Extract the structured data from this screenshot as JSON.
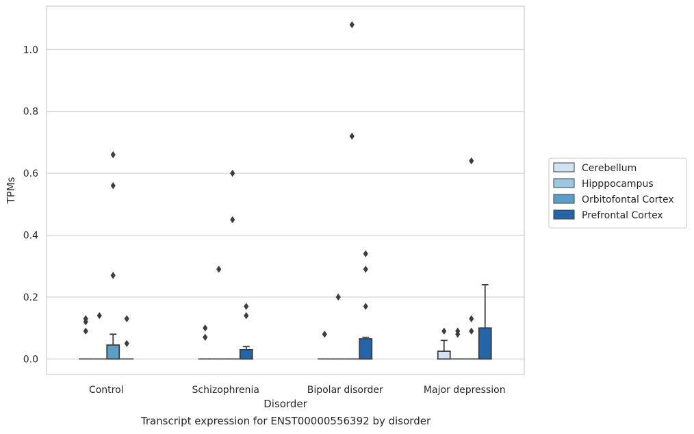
{
  "caption": "Transcript expression for ENST00000556392 by disorder",
  "chart_data": {
    "type": "box",
    "title": "",
    "xlabel": "Disorder",
    "ylabel": "TPMs",
    "ylim": [
      -0.05,
      1.14
    ],
    "yticks": [
      0.0,
      0.2,
      0.4,
      0.6,
      0.8,
      1.0
    ],
    "ytick_labels": [
      "0.0",
      "0.2",
      "0.4",
      "0.6",
      "0.8",
      "1.0"
    ],
    "grid": "horizontal",
    "legend_position": "right",
    "categories": [
      "Control",
      "Schizophrenia",
      "Bipolar disorder",
      "Major depression"
    ],
    "series": [
      {
        "name": "Cerebellum",
        "color": "#d1e2f2",
        "boxes": [
          {
            "q1": 0,
            "median": 0,
            "q3": 0,
            "whisker_low": 0,
            "whisker_high": 0,
            "outliers": [
              0.09,
              0.12,
              0.13
            ]
          },
          {
            "q1": 0,
            "median": 0,
            "q3": 0,
            "whisker_low": 0,
            "whisker_high": 0,
            "outliers": [
              0.07,
              0.1
            ]
          },
          {
            "q1": 0,
            "median": 0,
            "q3": 0,
            "whisker_low": 0,
            "whisker_high": 0,
            "outliers": [
              0.08
            ]
          },
          {
            "q1": 0,
            "median": 0,
            "q3": 0.025,
            "whisker_low": 0,
            "whisker_high": 0.06,
            "outliers": [
              0.09
            ]
          }
        ]
      },
      {
        "name": "Hipppocampus",
        "color": "#9ac8e0",
        "boxes": [
          {
            "q1": 0,
            "median": 0,
            "q3": 0,
            "whisker_low": 0,
            "whisker_high": 0,
            "outliers": [
              0.14
            ]
          },
          {
            "q1": 0,
            "median": 0,
            "q3": 0,
            "whisker_low": 0,
            "whisker_high": 0,
            "outliers": [
              0.29
            ]
          },
          {
            "q1": 0,
            "median": 0,
            "q3": 0,
            "whisker_low": 0,
            "whisker_high": 0,
            "outliers": [
              0.2
            ]
          },
          {
            "q1": 0,
            "median": 0,
            "q3": 0,
            "whisker_low": 0,
            "whisker_high": 0,
            "outliers": [
              0.08,
              0.09
            ]
          }
        ]
      },
      {
        "name": "Orbitofontal Cortex",
        "color": "#5a9ec9",
        "boxes": [
          {
            "q1": 0,
            "median": 0,
            "q3": 0.045,
            "whisker_low": 0,
            "whisker_high": 0.08,
            "outliers": [
              0.27,
              0.56,
              0.66
            ]
          },
          {
            "q1": 0,
            "median": 0,
            "q3": 0,
            "whisker_low": 0,
            "whisker_high": 0,
            "outliers": [
              0.45,
              0.6
            ]
          },
          {
            "q1": 0,
            "median": 0,
            "q3": 0,
            "whisker_low": 0,
            "whisker_high": 0,
            "outliers": [
              0.72,
              1.08
            ]
          },
          {
            "q1": 0,
            "median": 0,
            "q3": 0,
            "whisker_low": 0,
            "whisker_high": 0,
            "outliers": [
              0.09,
              0.13,
              0.64
            ]
          }
        ]
      },
      {
        "name": "Prefrontal Cortex",
        "color": "#2464a8",
        "boxes": [
          {
            "q1": 0,
            "median": 0,
            "q3": 0,
            "whisker_low": 0,
            "whisker_high": 0,
            "outliers": [
              0.05,
              0.13
            ]
          },
          {
            "q1": 0,
            "median": 0,
            "q3": 0.03,
            "whisker_low": 0,
            "whisker_high": 0.04,
            "outliers": [
              0.14,
              0.17
            ]
          },
          {
            "q1": 0,
            "median": 0,
            "q3": 0.065,
            "whisker_low": 0,
            "whisker_high": 0.07,
            "outliers": [
              0.17,
              0.29,
              0.34
            ]
          },
          {
            "q1": 0,
            "median": 0,
            "q3": 0.1,
            "whisker_low": 0,
            "whisker_high": 0.24,
            "outliers": []
          }
        ]
      }
    ]
  }
}
